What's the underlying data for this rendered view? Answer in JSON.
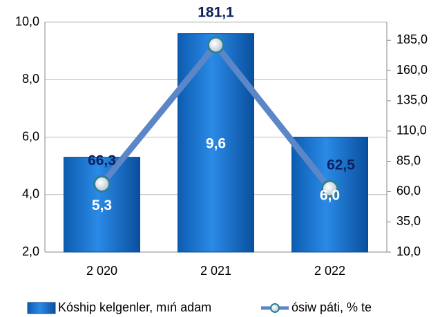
{
  "chart_data": {
    "type": "bar-line",
    "categories": [
      "2 020",
      "2 021",
      "2 022"
    ],
    "series": [
      {
        "name": "Kóship kelgenler, mıń adam",
        "type": "bar",
        "color": "#1a73d0",
        "values": [
          5.3,
          9.6,
          6.0
        ],
        "value_labels": [
          "5,3",
          "9,6",
          "6,0"
        ]
      },
      {
        "name": "ósiw páti, % te",
        "type": "line",
        "axis": "y2",
        "color": "#5b86c8",
        "values": [
          66.3,
          181.1,
          62.5
        ],
        "value_labels": [
          "66,3",
          "181,1",
          "62,5"
        ]
      }
    ],
    "ylim": [
      2,
      10
    ],
    "yticks": [
      {
        "value": 2,
        "label": "2,0"
      },
      {
        "value": 4,
        "label": "4,0"
      },
      {
        "value": 6,
        "label": "6,0"
      },
      {
        "value": 8,
        "label": "8,0"
      },
      {
        "value": 10,
        "label": "10,0"
      }
    ],
    "y2lim": [
      10,
      200
    ],
    "y2ticks": [
      {
        "value": 10,
        "label": "10,0"
      },
      {
        "value": 35,
        "label": "35,0"
      },
      {
        "value": 60,
        "label": "60,0"
      },
      {
        "value": 85,
        "label": "85,0"
      },
      {
        "value": 110,
        "label": "110,0"
      },
      {
        "value": 135,
        "label": "135,0"
      },
      {
        "value": 160,
        "label": "160,0"
      },
      {
        "value": 185,
        "label": "185,0"
      }
    ],
    "grid": true,
    "legend": "bottom"
  }
}
